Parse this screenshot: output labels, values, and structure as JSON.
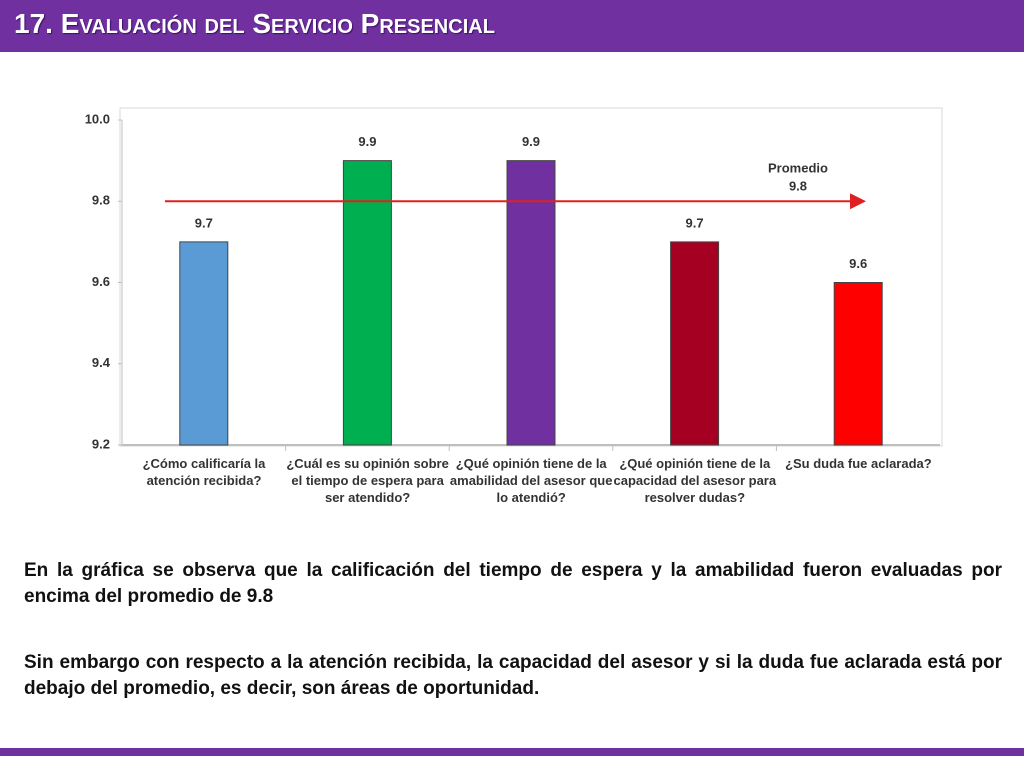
{
  "header": {
    "title": "17. Evaluación del Servicio Presencial"
  },
  "chart_data": {
    "type": "bar",
    "categories": [
      "¿Cómo calificaría la atención recibida?",
      "¿Cuál es su opinión sobre el tiempo de espera para ser atendido?",
      "¿Qué opinión tiene de la amabilidad del asesor que lo atendió?",
      "¿Qué opinión tiene de la capacidad del asesor para resolver dudas?",
      "¿Su duda fue aclarada?"
    ],
    "values": [
      9.7,
      9.9,
      9.9,
      9.7,
      9.6
    ],
    "colors": [
      "#5b9bd5",
      "#00b050",
      "#7030a0",
      "#a50021",
      "#ff0000"
    ],
    "ylim": [
      9.2,
      10.0
    ],
    "yticks": [
      9.2,
      9.4,
      9.6,
      9.8,
      {
        "value": 10,
        "label": "10.0"
      }
    ],
    "grid": false,
    "average": {
      "label": "Promedio",
      "value": 9.8,
      "color": "#e02020"
    }
  },
  "text": {
    "paragraphs": [
      "En la gráfica se observa que la calificación del tiempo de espera  y la amabilidad fueron evaluadas por encima del promedio de 9.8",
      "Sin embargo con respecto a la atención recibida, la capacidad del asesor y si la duda fue aclarada está por debajo del promedio, es decir, son áreas de oportunidad."
    ]
  }
}
